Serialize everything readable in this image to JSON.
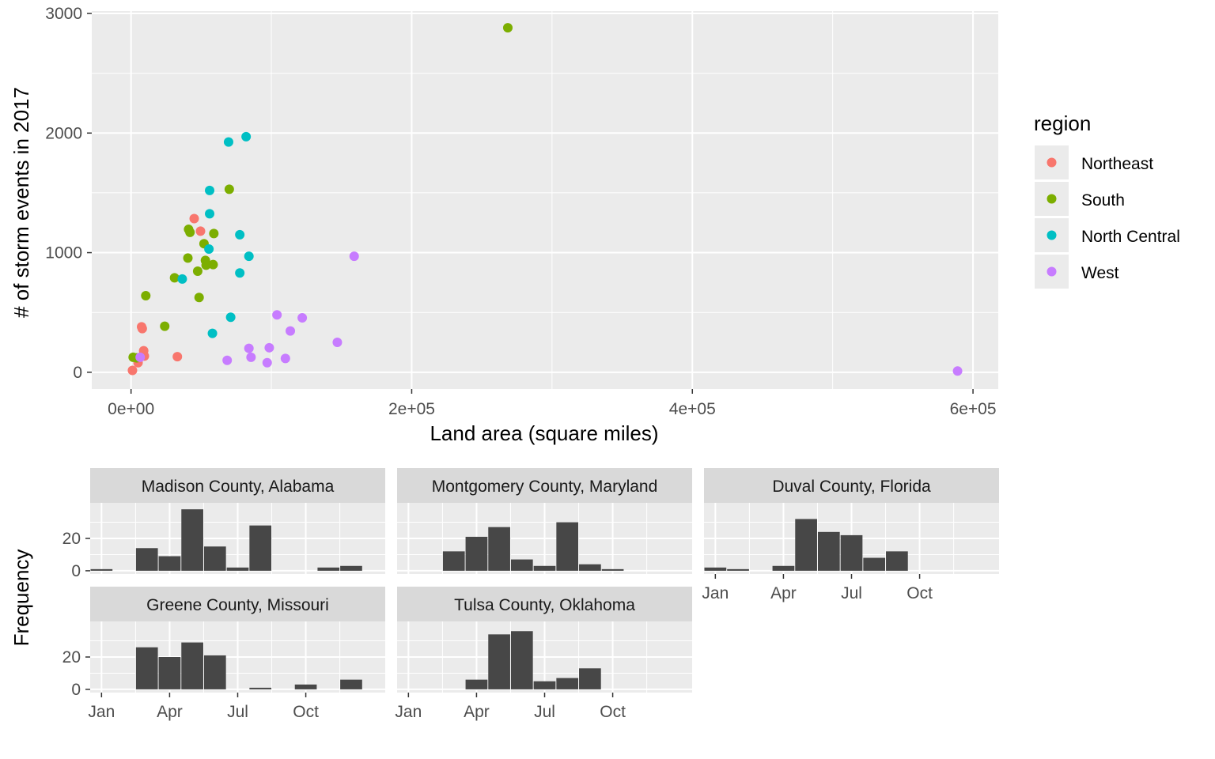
{
  "colors": {
    "panel_bg": "#ebebeb",
    "grid": "#ffffff",
    "strip_bg": "#d9d9d9",
    "bar": "#474747",
    "axis_text": "#4d4d4d",
    "title_text": "#000000"
  },
  "chart_data": [
    {
      "type": "scatter",
      "xlabel": "Land area (square miles)",
      "ylabel": "# of storm events in 2017",
      "xlim": [
        -28000,
        618000
      ],
      "ylim": [
        -140,
        3020
      ],
      "x_ticks": [
        0,
        200000,
        400000,
        600000
      ],
      "x_tick_labels": [
        "0e+00",
        "2e+05",
        "4e+05",
        "6e+05"
      ],
      "y_ticks": [
        0,
        1000,
        2000,
        3000
      ],
      "y_tick_labels": [
        "0",
        "1000",
        "2000",
        "3000"
      ],
      "grid": true,
      "legend": {
        "title": "region",
        "placement": "right",
        "entries": [
          {
            "name": "Northeast",
            "color": "#F8766D"
          },
          {
            "name": "South",
            "color": "#7CAE00"
          },
          {
            "name": "North Central",
            "color": "#00BFC4"
          },
          {
            "name": "West",
            "color": "#C77CFF"
          }
        ]
      },
      "series": [
        {
          "name": "Northeast",
          "color": "#F8766D",
          "points": [
            [
              1000,
              15
            ],
            [
              5000,
              80
            ],
            [
              7500,
              380
            ],
            [
              8000,
              365
            ],
            [
              9000,
              180
            ],
            [
              9500,
              135
            ],
            [
              33000,
              130
            ],
            [
              45000,
              1285
            ],
            [
              49500,
              1180
            ]
          ]
        },
        {
          "name": "South",
          "color": "#7CAE00",
          "points": [
            [
              1500,
              125
            ],
            [
              4000,
              120
            ],
            [
              10500,
              640
            ],
            [
              24000,
              385
            ],
            [
              31000,
              790
            ],
            [
              40500,
              955
            ],
            [
              41000,
              1195
            ],
            [
              42000,
              1170
            ],
            [
              47500,
              845
            ],
            [
              48500,
              625
            ],
            [
              52000,
              1075
            ],
            [
              53000,
              935
            ],
            [
              53500,
              895
            ],
            [
              58500,
              900
            ],
            [
              59000,
              1160
            ],
            [
              70000,
              1530
            ],
            [
              268500,
              2880
            ]
          ]
        },
        {
          "name": "North Central",
          "color": "#00BFC4",
          "points": [
            [
              36500,
              780
            ],
            [
              55500,
              1030
            ],
            [
              56000,
              1520
            ],
            [
              56000,
              1325
            ],
            [
              58000,
              325
            ],
            [
              69500,
              1925
            ],
            [
              71000,
              460
            ],
            [
              77500,
              1150
            ],
            [
              77500,
              830
            ],
            [
              82000,
              1970
            ],
            [
              84000,
              970
            ]
          ]
        },
        {
          "name": "West",
          "color": "#C77CFF",
          "points": [
            [
              6500,
              125
            ],
            [
              68500,
              100
            ],
            [
              84000,
              200
            ],
            [
              85500,
              125
            ],
            [
              97000,
              80
            ],
            [
              98500,
              205
            ],
            [
              104000,
              480
            ],
            [
              110000,
              115
            ],
            [
              113500,
              345
            ],
            [
              122000,
              455
            ],
            [
              147000,
              250
            ],
            [
              159000,
              970
            ],
            [
              589000,
              10
            ]
          ]
        }
      ]
    },
    {
      "type": "bar",
      "ylabel": "Frequency",
      "x_tick_positions": [
        1,
        4,
        7,
        10
      ],
      "x_tick_labels": [
        "Jan",
        "Apr",
        "Jul",
        "Oct"
      ],
      "y_ticks": [
        0,
        20
      ],
      "y_tick_labels": [
        "0",
        "20"
      ],
      "ylim": [
        -2,
        42
      ],
      "facets": [
        {
          "title": "Madison County, Alabama",
          "values": [
            1,
            0,
            14,
            9,
            38,
            15,
            2,
            28,
            0,
            0,
            2,
            3
          ]
        },
        {
          "title": "Montgomery County, Maryland",
          "values": [
            0,
            0,
            12,
            21,
            27,
            7,
            3,
            30,
            4,
            1,
            0,
            0
          ]
        },
        {
          "title": "Duval County, Florida",
          "values": [
            2,
            1,
            0,
            3,
            32,
            24,
            22,
            8,
            12,
            0,
            0,
            0
          ]
        },
        {
          "title": "Greene County, Missouri",
          "values": [
            0,
            0,
            26,
            20,
            29,
            21,
            0,
            1,
            0,
            3,
            0,
            6
          ]
        },
        {
          "title": "Tulsa County, Oklahoma",
          "values": [
            0,
            0,
            0,
            6,
            34,
            36,
            5,
            7,
            13,
            0,
            0,
            0
          ]
        }
      ]
    }
  ]
}
